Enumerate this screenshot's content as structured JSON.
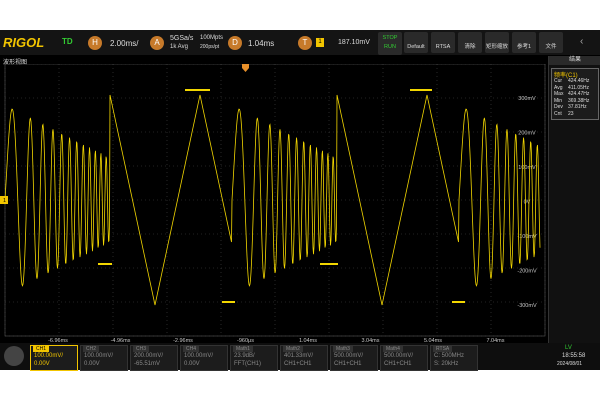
{
  "top_bar": {
    "logo": "RIGOL",
    "mode": "TD",
    "horizontal": {
      "key": "H",
      "value": "2.00ms/"
    },
    "acquire": {
      "key": "A",
      "rate": "5GSa/s",
      "avg": "1k Avg",
      "depth": "100Mpts",
      "resolution": "200ps/pt"
    },
    "delay": {
      "key": "D",
      "value": "1.04ms"
    },
    "trigger": {
      "key": "T",
      "source": "1",
      "level": "187.10mV"
    },
    "run": {
      "stop": "STOP",
      "run": "RUN"
    },
    "buttons": [
      "Default",
      "RTSA",
      "清除",
      "矩形缩放",
      "参考1",
      "文件"
    ]
  },
  "waveform_view": {
    "title": "波形视图",
    "channel_marker": "1",
    "y_labels": [
      "300mV",
      "200mV",
      "100mV",
      "0V",
      "-100mV",
      "-200mV",
      "-300mV"
    ],
    "x_labels": [
      "-6.96ms",
      "-4.96ms",
      "-2.96ms",
      "-960μs",
      "1.04ms",
      "3.04ms",
      "5.04ms",
      "7.04ms",
      "9.04ms"
    ]
  },
  "results": {
    "title": "结果",
    "measure": "频率(C1)",
    "rows": [
      [
        "Cur",
        "424.46Hz"
      ],
      [
        "Avg",
        "411.05Hz"
      ],
      [
        "Max",
        "424.47Hz"
      ],
      [
        "Min",
        "369.38Hz"
      ],
      [
        "Dev",
        "37.81Hz"
      ],
      [
        "Cnt",
        "23"
      ]
    ]
  },
  "channels": [
    {
      "name": "CH1",
      "scale": "100.00mV/",
      "offset": "0.00V"
    },
    {
      "name": "CH2",
      "scale": "100.00mV/",
      "offset": "0.00V"
    },
    {
      "name": "CH3",
      "scale": "200.00mV/",
      "offset": "-65.51mV"
    },
    {
      "name": "CH4",
      "scale": "100.00mV/",
      "offset": "0.00V"
    },
    {
      "name": "Math1",
      "scale": "23.9dB/",
      "offset": "FFT(CH1)"
    },
    {
      "name": "Math2",
      "scale": "401.33mV/",
      "offset": "CH1+CH1"
    },
    {
      "name": "Math3",
      "scale": "500.00mV/",
      "offset": "CH1+CH1"
    },
    {
      "name": "Math4",
      "scale": "500.00mV/",
      "offset": "CH1+CH1"
    },
    {
      "name": "RTSA",
      "scale": "C: 500MHz",
      "offset": "S: 20kHz"
    }
  ],
  "status": {
    "lv": "LV",
    "time": "18:55:58",
    "date": "2024/08/01"
  }
}
